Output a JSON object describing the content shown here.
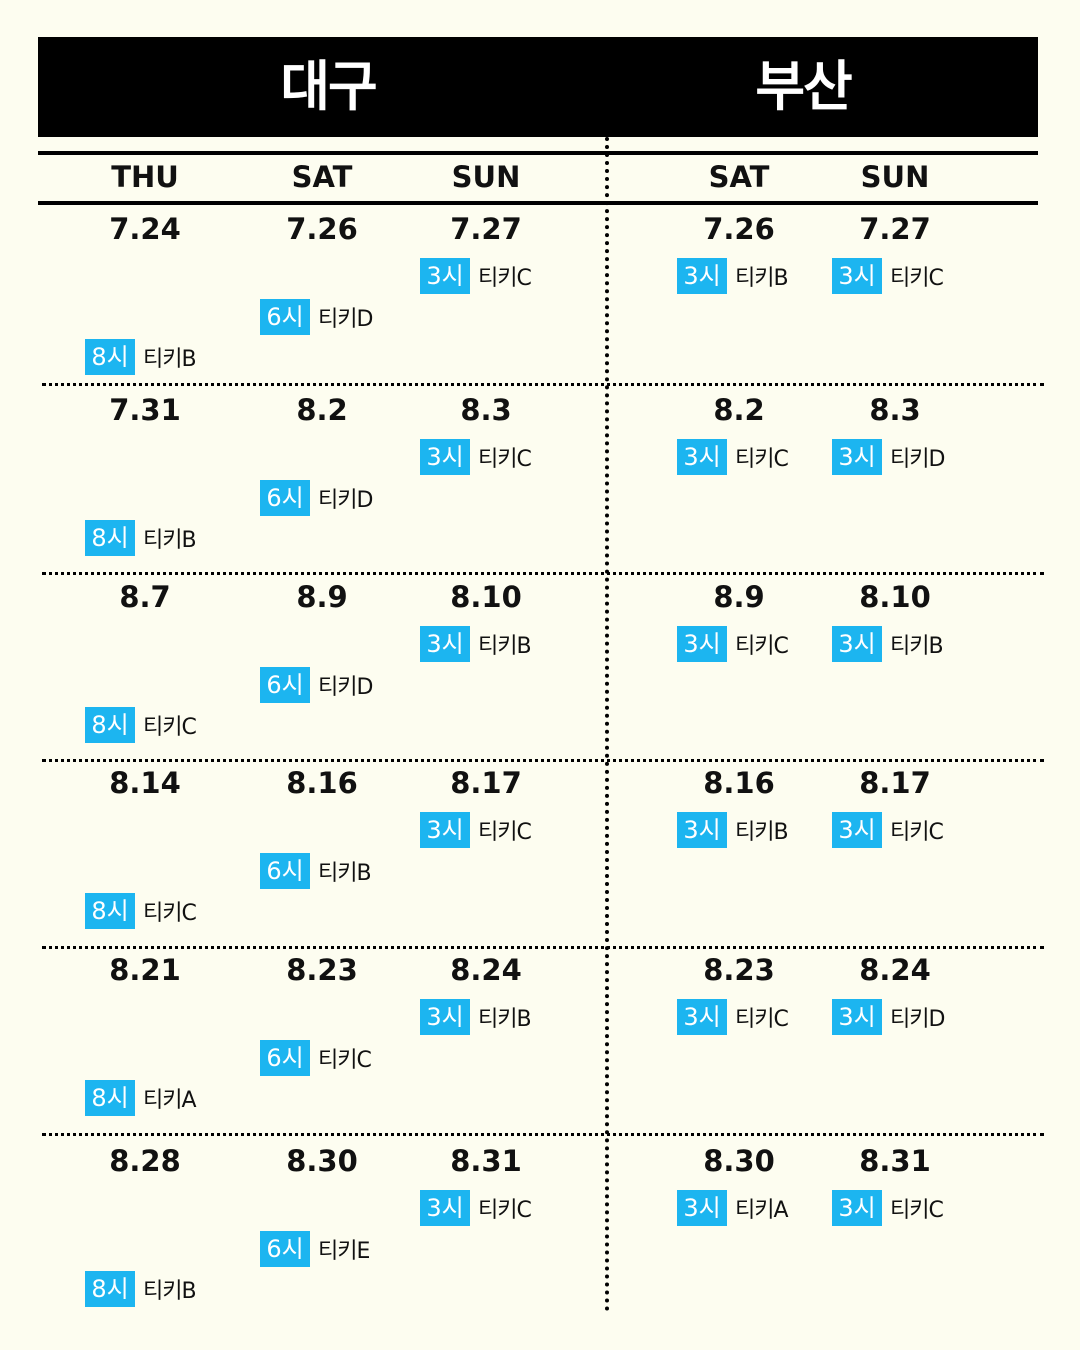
{
  "header": {
    "left_city": "대구",
    "right_city": "부산"
  },
  "days": [
    "THU",
    "SAT",
    "SUN",
    "SAT",
    "SUN"
  ],
  "rows": [
    {
      "dates": [
        "7.24",
        "7.26",
        "7.27",
        "7.26",
        "7.27"
      ],
      "slots": [
        {
          "time": "8시",
          "ticket": "티키B"
        },
        {
          "time": "6시",
          "ticket": "티키D"
        },
        {
          "time": "3시",
          "ticket": "티키C"
        },
        {
          "time": "3시",
          "ticket": "티키B"
        },
        {
          "time": "3시",
          "ticket": "티키C"
        }
      ]
    },
    {
      "dates": [
        "7.31",
        "8.2",
        "8.3",
        "8.2",
        "8.3"
      ],
      "slots": [
        {
          "time": "8시",
          "ticket": "티키B"
        },
        {
          "time": "6시",
          "ticket": "티키D"
        },
        {
          "time": "3시",
          "ticket": "티키C"
        },
        {
          "time": "3시",
          "ticket": "티키C"
        },
        {
          "time": "3시",
          "ticket": "티키D"
        }
      ]
    },
    {
      "dates": [
        "8.7",
        "8.9",
        "8.10",
        "8.9",
        "8.10"
      ],
      "slots": [
        {
          "time": "8시",
          "ticket": "티키C"
        },
        {
          "time": "6시",
          "ticket": "티키D"
        },
        {
          "time": "3시",
          "ticket": "티키B"
        },
        {
          "time": "3시",
          "ticket": "티키C"
        },
        {
          "time": "3시",
          "ticket": "티키B"
        }
      ]
    },
    {
      "dates": [
        "8.14",
        "8.16",
        "8.17",
        "8.16",
        "8.17"
      ],
      "slots": [
        {
          "time": "8시",
          "ticket": "티키C"
        },
        {
          "time": "6시",
          "ticket": "티키B"
        },
        {
          "time": "3시",
          "ticket": "티키C"
        },
        {
          "time": "3시",
          "ticket": "티키B"
        },
        {
          "time": "3시",
          "ticket": "티키C"
        }
      ]
    },
    {
      "dates": [
        "8.21",
        "8.23",
        "8.24",
        "8.23",
        "8.24"
      ],
      "slots": [
        {
          "time": "8시",
          "ticket": "티키A"
        },
        {
          "time": "6시",
          "ticket": "티키C"
        },
        {
          "time": "3시",
          "ticket": "티키B"
        },
        {
          "time": "3시",
          "ticket": "티키C"
        },
        {
          "time": "3시",
          "ticket": "티키D"
        }
      ]
    },
    {
      "dates": [
        "8.28",
        "8.30",
        "8.31",
        "8.30",
        "8.31"
      ],
      "slots": [
        {
          "time": "8시",
          "ticket": "티키B"
        },
        {
          "time": "6시",
          "ticket": "티키E"
        },
        {
          "time": "3시",
          "ticket": "티키C"
        },
        {
          "time": "3시",
          "ticket": "티키A"
        },
        {
          "time": "3시",
          "ticket": "티키C"
        }
      ]
    }
  ],
  "colors": {
    "background": "#fdfdf0",
    "badge": "#1cb5f0",
    "header": "#000000"
  }
}
